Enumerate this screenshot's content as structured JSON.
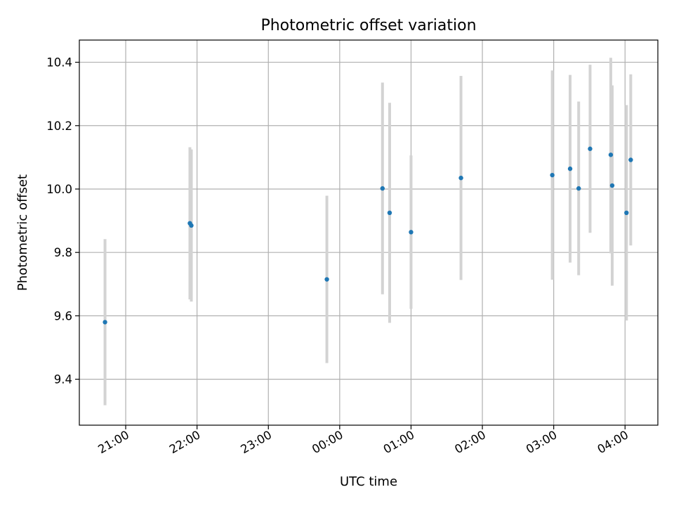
{
  "chart_data": {
    "type": "scatter",
    "title": "Photometric offset variation",
    "xlabel": "UTC time",
    "ylabel": "Photometric offset",
    "xlim_hours": [
      20.35,
      28.46
    ],
    "ylim": [
      9.255,
      10.47
    ],
    "grid": true,
    "x_ticks": [
      {
        "hour": 21,
        "label": "21:00"
      },
      {
        "hour": 22,
        "label": "22:00"
      },
      {
        "hour": 23,
        "label": "23:00"
      },
      {
        "hour": 24,
        "label": "00:00"
      },
      {
        "hour": 25,
        "label": "01:00"
      },
      {
        "hour": 26,
        "label": "02:00"
      },
      {
        "hour": 27,
        "label": "03:00"
      },
      {
        "hour": 28,
        "label": "04:00"
      }
    ],
    "y_ticks": [
      {
        "value": 9.4,
        "label": "9.4"
      },
      {
        "value": 9.6,
        "label": "9.6"
      },
      {
        "value": 9.8,
        "label": "9.8"
      },
      {
        "value": 10.0,
        "label": "10.0"
      },
      {
        "value": 10.2,
        "label": "10.2"
      },
      {
        "value": 10.4,
        "label": "10.4"
      }
    ],
    "marker_color": "#1f77b4",
    "errorbar_color": "#d3d3d3",
    "points": [
      {
        "x": 20.71,
        "y": 9.58,
        "ylow": 9.318,
        "yhigh": 9.842
      },
      {
        "x": 21.9,
        "y": 9.892,
        "ylow": 9.652,
        "yhigh": 10.132
      },
      {
        "x": 21.92,
        "y": 9.885,
        "ylow": 9.645,
        "yhigh": 10.125
      },
      {
        "x": 23.82,
        "y": 9.715,
        "ylow": 9.451,
        "yhigh": 9.979
      },
      {
        "x": 24.6,
        "y": 10.002,
        "ylow": 9.668,
        "yhigh": 10.336
      },
      {
        "x": 24.7,
        "y": 9.925,
        "ylow": 9.578,
        "yhigh": 10.272
      },
      {
        "x": 25.0,
        "y": 9.864,
        "ylow": 9.622,
        "yhigh": 10.106
      },
      {
        "x": 25.7,
        "y": 10.035,
        "ylow": 9.713,
        "yhigh": 10.357
      },
      {
        "x": 26.98,
        "y": 10.044,
        "ylow": 9.714,
        "yhigh": 10.374
      },
      {
        "x": 27.23,
        "y": 10.064,
        "ylow": 9.768,
        "yhigh": 10.36
      },
      {
        "x": 27.35,
        "y": 10.002,
        "ylow": 9.728,
        "yhigh": 10.276
      },
      {
        "x": 27.51,
        "y": 10.127,
        "ylow": 9.862,
        "yhigh": 10.392
      },
      {
        "x": 27.8,
        "y": 10.108,
        "ylow": 9.797,
        "yhigh": 10.414
      },
      {
        "x": 27.82,
        "y": 10.011,
        "ylow": 9.695,
        "yhigh": 10.327
      },
      {
        "x": 28.02,
        "y": 9.925,
        "ylow": 9.585,
        "yhigh": 10.265
      },
      {
        "x": 28.08,
        "y": 10.092,
        "ylow": 9.822,
        "yhigh": 10.362
      }
    ]
  }
}
